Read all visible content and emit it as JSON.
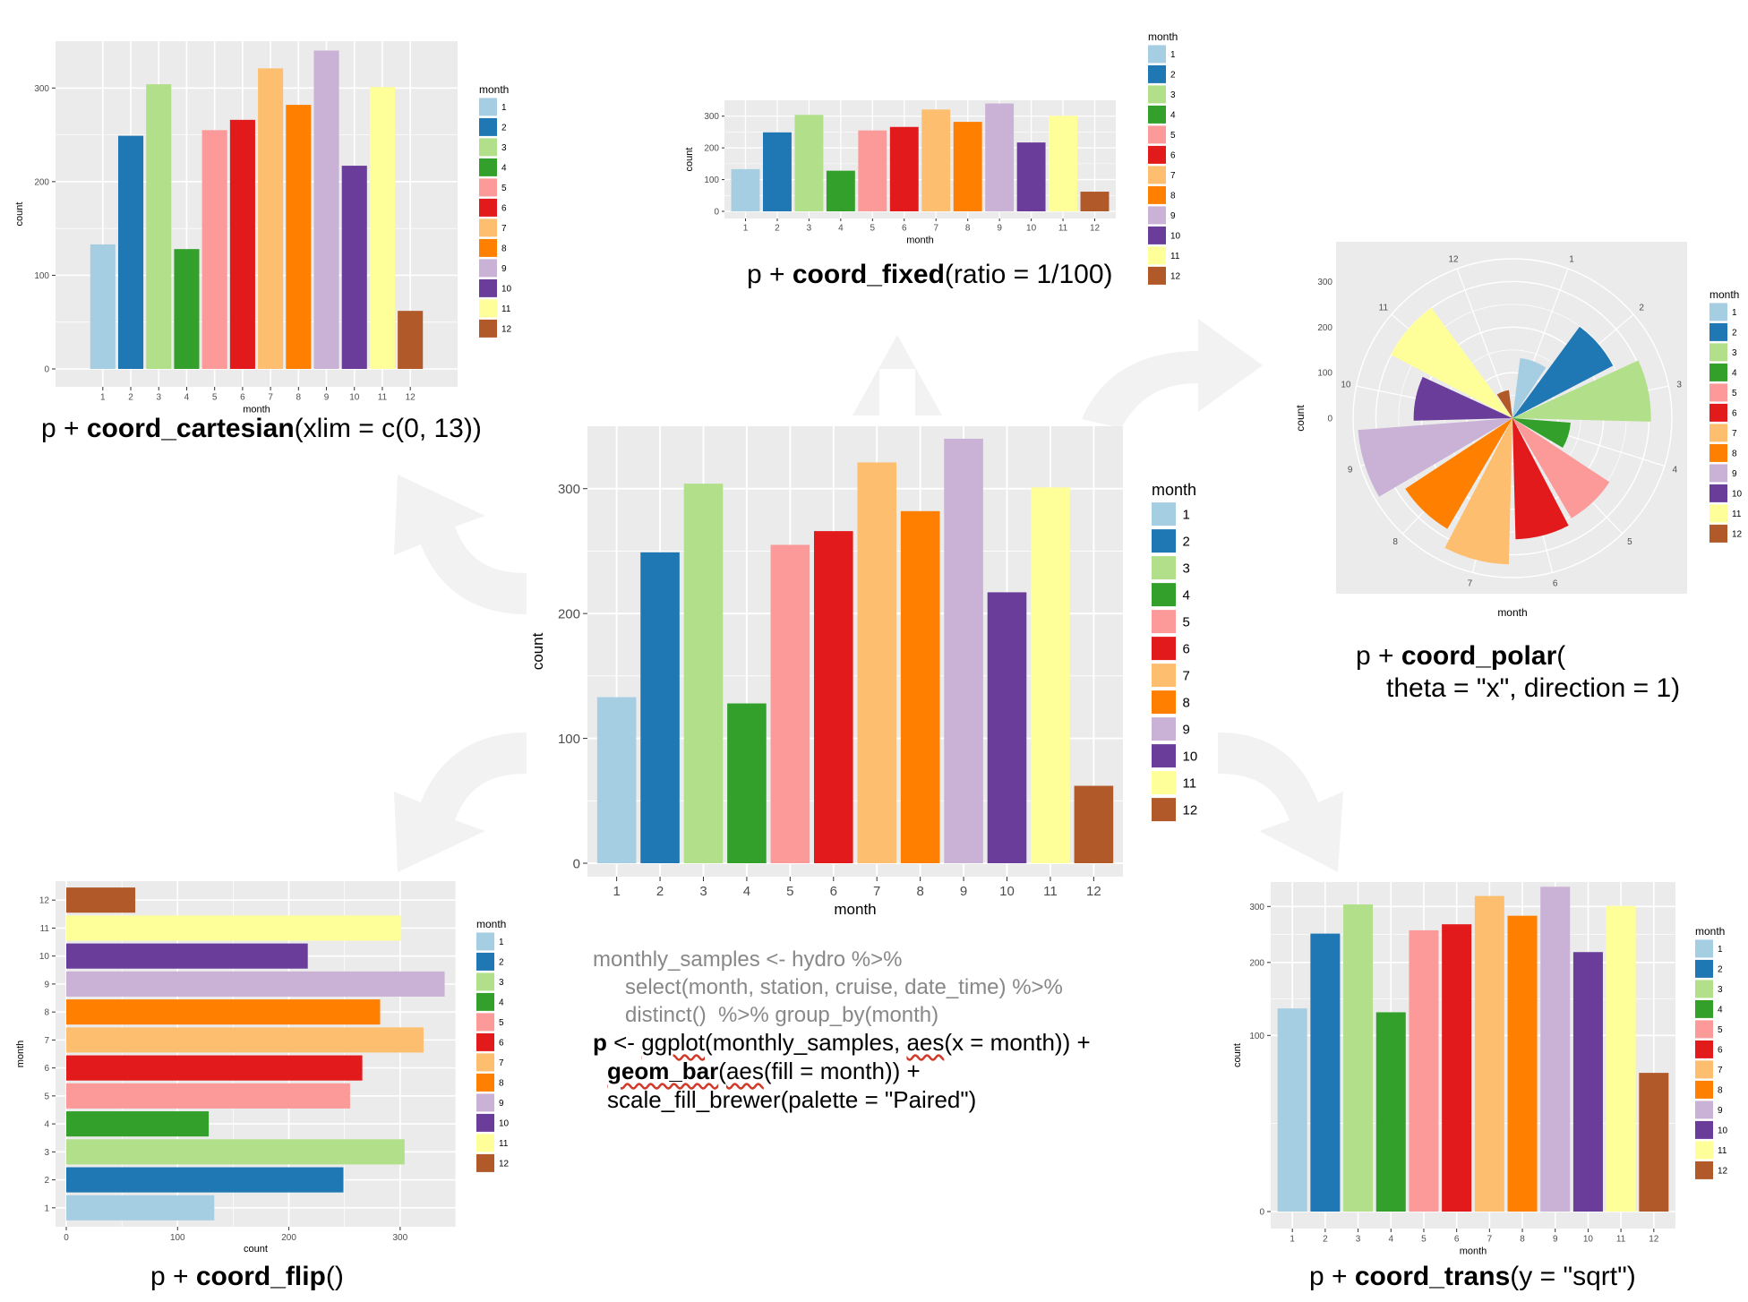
{
  "chart_data": {
    "type": "bar",
    "title": "",
    "xlabel": "month",
    "ylabel": "count",
    "legend_title": "month",
    "categories": [
      "1",
      "2",
      "3",
      "4",
      "5",
      "6",
      "7",
      "8",
      "9",
      "10",
      "11",
      "12"
    ],
    "values": [
      133,
      249,
      304,
      128,
      255,
      266,
      321,
      282,
      340,
      217,
      301,
      62
    ],
    "ylim": [
      0,
      350
    ],
    "yticks": [
      0,
      100,
      200,
      300
    ],
    "yticks_sqrt": [
      0,
      100,
      200,
      300
    ],
    "palette": [
      "#a6cee3",
      "#1f78b4",
      "#b2df8a",
      "#33a02c",
      "#fb9a99",
      "#e31a1c",
      "#fdbf6f",
      "#ff7f00",
      "#cab2d6",
      "#6a3d9a",
      "#ffff99",
      "#b15928"
    ],
    "panel_bg": "#ebebeb",
    "grid_color": "#ffffff",
    "arrow_color": "#f2f2f2"
  },
  "captions": {
    "cartesian": {
      "pre": "p + ",
      "fn": "coord_cartesian",
      "post": "(xlim = c(0, 13))"
    },
    "fixed": {
      "pre": "p + ",
      "fn": "coord_fixed",
      "post": "(ratio = 1/100)"
    },
    "polar": {
      "pre": "p + ",
      "fn": "coord_polar",
      "post": "(",
      "line2": "theta = \"x\", direction = 1)"
    },
    "flip": {
      "pre": "p + ",
      "fn": "coord_flip",
      "post": "()"
    },
    "trans": {
      "pre": "p + ",
      "fn": "coord_trans",
      "post": "(y = \"sqrt\")"
    }
  },
  "code": {
    "line1": "monthly_samples <- hydro %>%",
    "line2": "select(month, station, cruise, date_time) %>%",
    "line3": "distinct()  %>% group_by(month)",
    "line4_p": "p",
    "line4_arrow": " <- ",
    "line4_ggplot": "ggplot",
    "line4_mid": "(monthly_samples, ",
    "line4_aes": "aes",
    "line4_end": "(x = month)) +",
    "line5_geom": "geom_bar",
    "line5_open": "(",
    "line5_aes": "aes",
    "line5_end": "(fill = month)) +",
    "line6": "scale_fill_brewer(palette = \"Paired\")"
  }
}
